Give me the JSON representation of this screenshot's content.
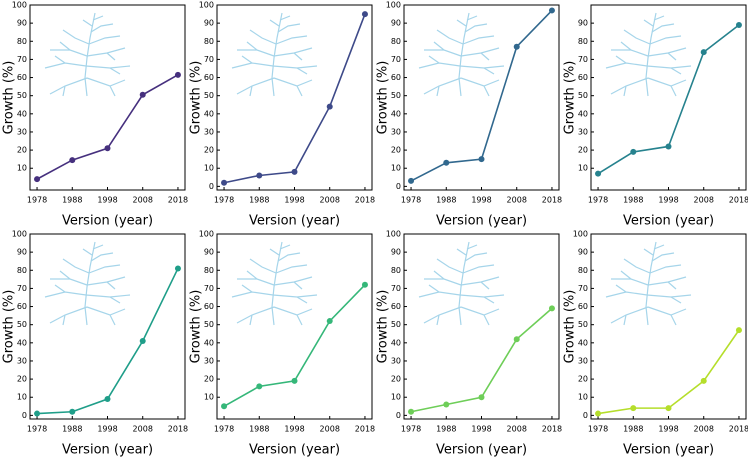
{
  "chart_data": [
    {
      "type": "line",
      "x_label": "Version (year)",
      "y_label": "Growth (%)",
      "x": [
        1978,
        1988,
        1998,
        2008,
        2018
      ],
      "xlim": [
        1976,
        2020
      ],
      "xticks": [
        1978,
        1988,
        1998,
        2008,
        2018
      ],
      "ylim": [
        -2,
        100
      ],
      "yticks": [
        10,
        20,
        30,
        40,
        50,
        60,
        70,
        80,
        90,
        100
      ],
      "color": "#46307e",
      "values": [
        4,
        14.5,
        21,
        50.5,
        61.5
      ]
    },
    {
      "type": "line",
      "x_label": "Version (year)",
      "y_label": "Growth (%)",
      "x": [
        1978,
        1988,
        1998,
        2008,
        2018
      ],
      "xlim": [
        1976,
        2020
      ],
      "xticks": [
        1978,
        1988,
        1998,
        2008,
        2018
      ],
      "ylim": [
        -2,
        100
      ],
      "yticks": [
        0,
        10,
        20,
        30,
        40,
        50,
        60,
        70,
        80,
        90,
        100
      ],
      "color": "#3e4a89",
      "values": [
        2,
        6,
        8,
        44,
        95
      ]
    },
    {
      "type": "line",
      "x_label": "Version (year)",
      "y_label": "Growth (%)",
      "x": [
        1978,
        1988,
        1998,
        2008,
        2018
      ],
      "xlim": [
        1976,
        2020
      ],
      "xticks": [
        1978,
        1988,
        1998,
        2008,
        2018
      ],
      "ylim": [
        -2,
        100
      ],
      "yticks": [
        0,
        10,
        20,
        30,
        40,
        50,
        60,
        70,
        80,
        90,
        100
      ],
      "color": "#31688e",
      "values": [
        3,
        13,
        15,
        77,
        97
      ]
    },
    {
      "type": "line",
      "x_label": "Version (year)",
      "y_label": "Growth (%)",
      "x": [
        1978,
        1988,
        1998,
        2008,
        2018
      ],
      "xlim": [
        1976,
        2020
      ],
      "xticks": [
        1978,
        1988,
        1998,
        2008,
        2018
      ],
      "ylim": [
        -2,
        100
      ],
      "yticks": [
        10,
        20,
        30,
        40,
        50,
        60,
        70,
        80,
        90
      ],
      "color": "#26828e",
      "values": [
        7,
        19,
        22,
        74,
        89
      ]
    },
    {
      "type": "line",
      "x_label": "Version (year)",
      "y_label": "Growth (%)",
      "x": [
        1978,
        1988,
        1998,
        2008,
        2018
      ],
      "xlim": [
        1976,
        2020
      ],
      "xticks": [
        1978,
        1988,
        1998,
        2008,
        2018
      ],
      "ylim": [
        -2,
        100
      ],
      "yticks": [
        0,
        10,
        20,
        30,
        40,
        50,
        60,
        70,
        80,
        90,
        100
      ],
      "color": "#1f9e89",
      "values": [
        1,
        2,
        9,
        41,
        81
      ]
    },
    {
      "type": "line",
      "x_label": "Version (year)",
      "y_label": "Growth (%)",
      "x": [
        1978,
        1988,
        1998,
        2008,
        2018
      ],
      "xlim": [
        1976,
        2020
      ],
      "xticks": [
        1978,
        1988,
        1998,
        2008,
        2018
      ],
      "ylim": [
        -2,
        100
      ],
      "yticks": [
        10,
        20,
        30,
        40,
        50,
        60,
        70,
        80,
        90,
        100
      ],
      "color": "#35b779",
      "values": [
        5,
        16,
        19,
        52,
        72
      ]
    },
    {
      "type": "line",
      "x_label": "Version (year)",
      "y_label": "Growth (%)",
      "x": [
        1978,
        1988,
        1998,
        2008,
        2018
      ],
      "xlim": [
        1976,
        2020
      ],
      "xticks": [
        1978,
        1988,
        1998,
        2008,
        2018
      ],
      "ylim": [
        -2,
        100
      ],
      "yticks": [
        0,
        10,
        20,
        30,
        40,
        50,
        60,
        70,
        80,
        90,
        100
      ],
      "color": "#6ece58",
      "values": [
        2,
        6,
        10,
        42,
        59
      ]
    },
    {
      "type": "line",
      "x_label": "Version (year)",
      "y_label": "Growth (%)",
      "x": [
        1978,
        1988,
        1998,
        2008,
        2018
      ],
      "xlim": [
        1976,
        2020
      ],
      "xticks": [
        1978,
        1988,
        1998,
        2008,
        2018
      ],
      "ylim": [
        -2,
        100
      ],
      "yticks": [
        0,
        10,
        20,
        30,
        40,
        50,
        60,
        70,
        80,
        90,
        100
      ],
      "color": "#b5de2b",
      "values": [
        1,
        4,
        4,
        19,
        47
      ]
    }
  ]
}
